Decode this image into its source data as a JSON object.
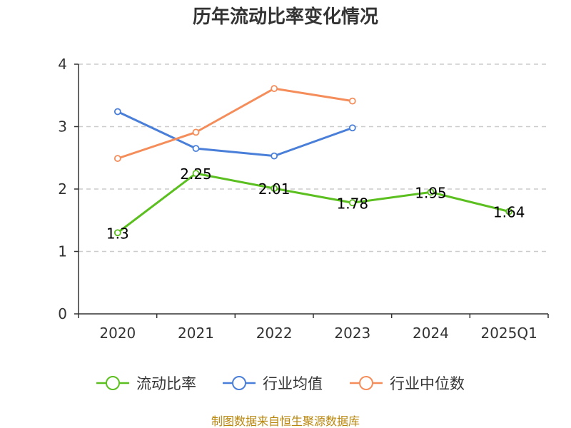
{
  "chart_data": {
    "type": "line",
    "title": "历年流动比率变化情况",
    "xlabel": "",
    "ylabel": "",
    "categories": [
      "2020",
      "2021",
      "2022",
      "2023",
      "2024",
      "2025Q1"
    ],
    "ylim": [
      0,
      4
    ],
    "yticks": [
      "0",
      "1",
      "2",
      "3",
      "4"
    ],
    "grid": true,
    "legend_position": "bottom",
    "series": [
      {
        "name": "流动比率",
        "color": "#5cbf20",
        "values": [
          1.3,
          2.25,
          2.01,
          1.78,
          1.95,
          1.64
        ],
        "labels": [
          "1.3",
          "2.25",
          "2.01",
          "1.78",
          "1.95",
          "1.64"
        ]
      },
      {
        "name": "行业均值",
        "color": "#4a7fd9",
        "values": [
          3.24,
          2.65,
          2.53,
          2.98,
          null,
          null
        ]
      },
      {
        "name": "行业中位数",
        "color": "#f58d5a",
        "values": [
          2.49,
          2.91,
          3.61,
          3.41,
          null,
          null
        ]
      }
    ]
  },
  "footer": {
    "source": "制图数据来自恒生聚源数据库"
  }
}
